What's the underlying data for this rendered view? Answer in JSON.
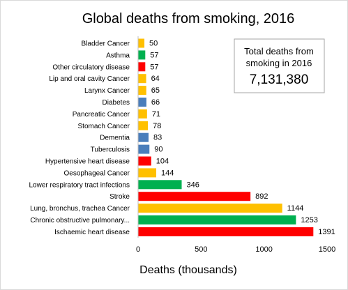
{
  "chart_data": {
    "type": "bar",
    "orientation": "horizontal",
    "title": "Global deaths from smoking, 2016",
    "xlabel": "Deaths (thousands)",
    "ylabel": "",
    "xlim": [
      0,
      1500
    ],
    "x_ticks": [
      "0",
      "500",
      "1000",
      "1500"
    ],
    "grid": false,
    "categories": [
      "Bladder Cancer",
      "Asthma",
      "Other circulatory disease",
      "Lip and oral cavity Cancer",
      "Larynx Cancer",
      "Diabetes",
      "Pancreatic Cancer",
      "Stomach Cancer",
      "Dementia",
      "Tuberculosis",
      "Hypertensive heart disease",
      "Oesophageal Cancer",
      "Lower respiratory tract infections",
      "Stroke",
      "Lung, bronchus, trachea Cancer",
      "Chronic obstructive pulmonary...",
      "Ischaemic heart disease"
    ],
    "values": [
      50,
      57,
      57,
      64,
      65,
      66,
      71,
      78,
      83,
      90,
      104,
      144,
      346,
      892,
      1144,
      1253,
      1391
    ],
    "bar_colors": [
      "#ffc000",
      "#00b050",
      "#ff0000",
      "#ffc000",
      "#ffc000",
      "#4a7ebb",
      "#ffc000",
      "#ffc000",
      "#4a7ebb",
      "#4a7ebb",
      "#ff0000",
      "#ffc000",
      "#00b050",
      "#ff0000",
      "#ffc000",
      "#00b050",
      "#ff0000"
    ],
    "annotation": {
      "line1": "Total deaths from",
      "line2": "smoking in 2016",
      "total": "7,131,380"
    }
  }
}
